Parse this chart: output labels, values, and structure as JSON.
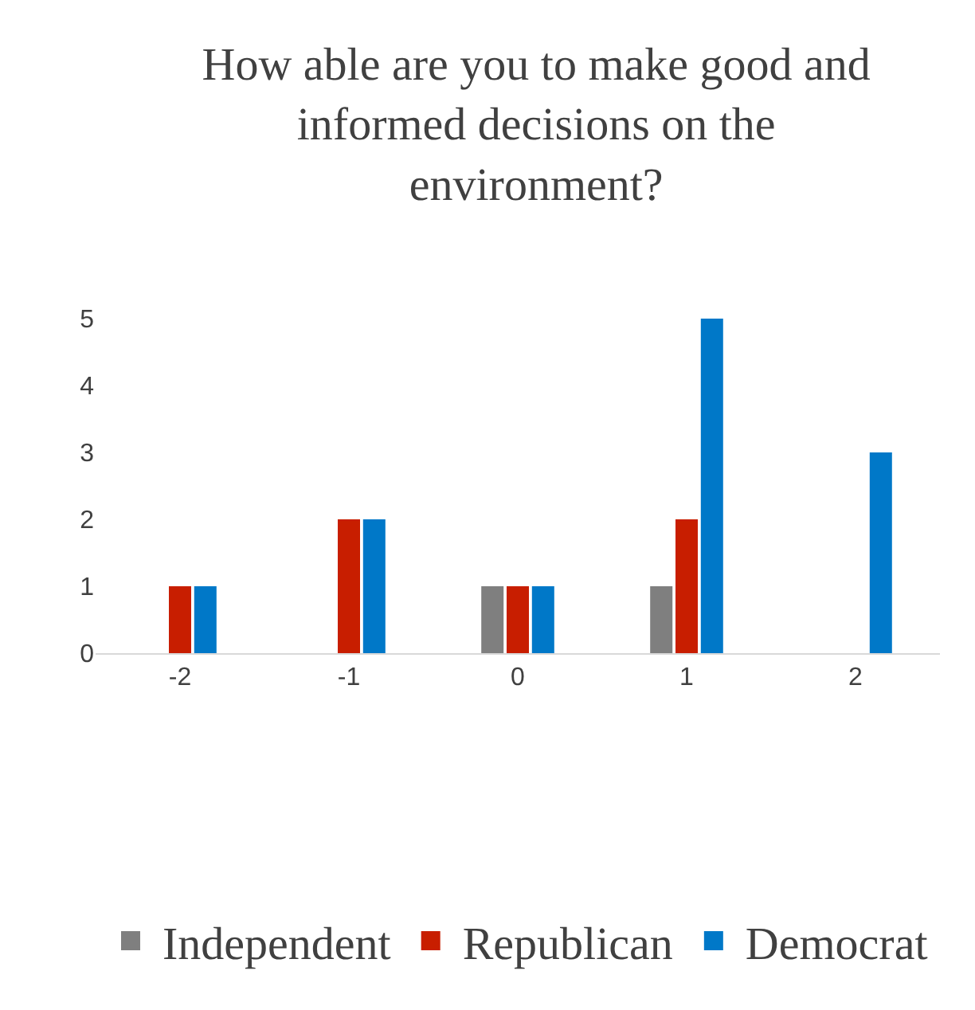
{
  "chart_data": {
    "type": "bar",
    "title": "How able are you to make good and informed decisions on the environment?",
    "categories": [
      "-2",
      "-1",
      "0",
      "1",
      "2"
    ],
    "series": [
      {
        "name": "Independent",
        "color": "#7f7f7f",
        "values": [
          0,
          0,
          1,
          1,
          0
        ]
      },
      {
        "name": "Republican",
        "color": "#c81e00",
        "values": [
          1,
          2,
          1,
          2,
          0
        ]
      },
      {
        "name": "Democrat",
        "color": "#0078c8",
        "values": [
          1,
          2,
          1,
          5,
          3
        ]
      }
    ],
    "ylim": [
      0,
      5
    ],
    "yticks": [
      0,
      1,
      2,
      3,
      4,
      5
    ],
    "grid": false,
    "legend": "bottom"
  }
}
